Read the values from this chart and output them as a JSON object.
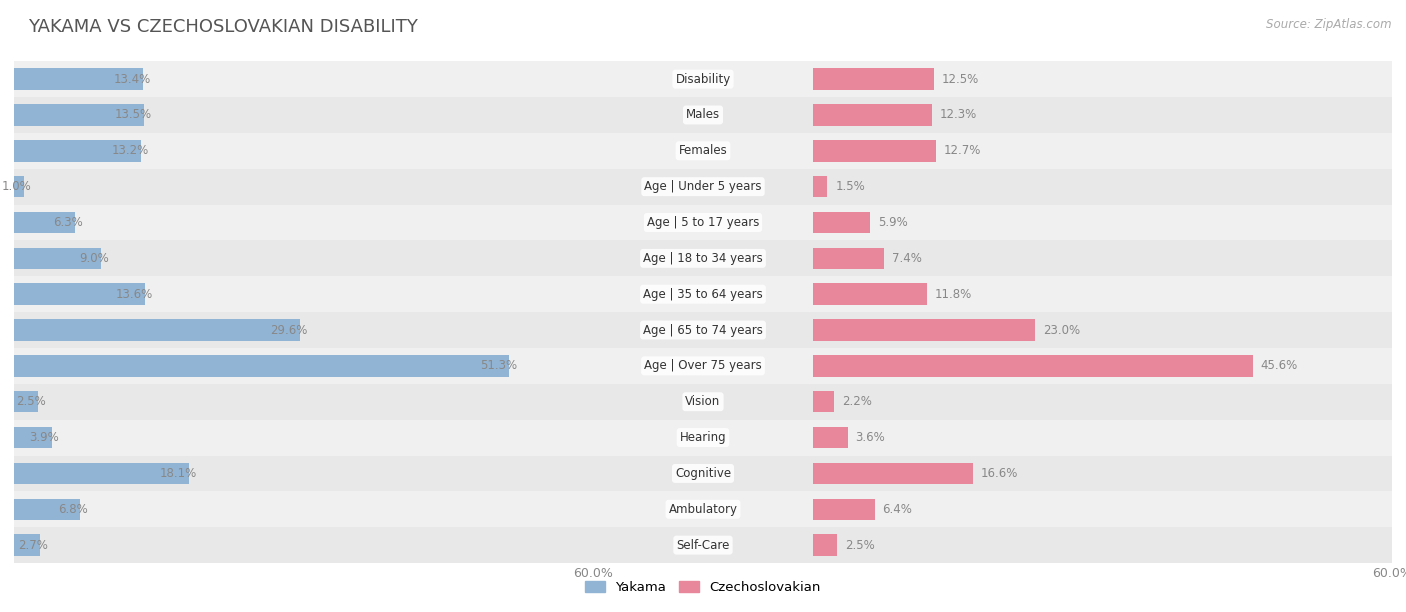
{
  "title": "YAKAMA VS CZECHOSLOVAKIAN DISABILITY",
  "source": "Source: ZipAtlas.com",
  "categories": [
    "Disability",
    "Males",
    "Females",
    "Age | Under 5 years",
    "Age | 5 to 17 years",
    "Age | 18 to 34 years",
    "Age | 35 to 64 years",
    "Age | 65 to 74 years",
    "Age | Over 75 years",
    "Vision",
    "Hearing",
    "Cognitive",
    "Ambulatory",
    "Self-Care"
  ],
  "yakama_values": [
    13.4,
    13.5,
    13.2,
    1.0,
    6.3,
    9.0,
    13.6,
    29.6,
    51.3,
    2.5,
    3.9,
    18.1,
    6.8,
    2.7
  ],
  "czech_values": [
    12.5,
    12.3,
    12.7,
    1.5,
    5.9,
    7.4,
    11.8,
    23.0,
    45.6,
    2.2,
    3.6,
    16.6,
    6.4,
    2.5
  ],
  "yakama_color": "#92b4d4",
  "czech_color": "#e8879c",
  "row_bg_even": "#f0f0f0",
  "row_bg_odd": "#e8e8e8",
  "axis_max": 60.0,
  "label_color": "#888888",
  "title_color": "#555555",
  "source_color": "#aaaaaa",
  "legend_yakama": "Yakama",
  "legend_czech": "Czechoslovakian",
  "bar_height": 0.6,
  "title_fontsize": 13,
  "label_fontsize": 8.5,
  "cat_fontsize": 8.5,
  "legend_fontsize": 9.5
}
